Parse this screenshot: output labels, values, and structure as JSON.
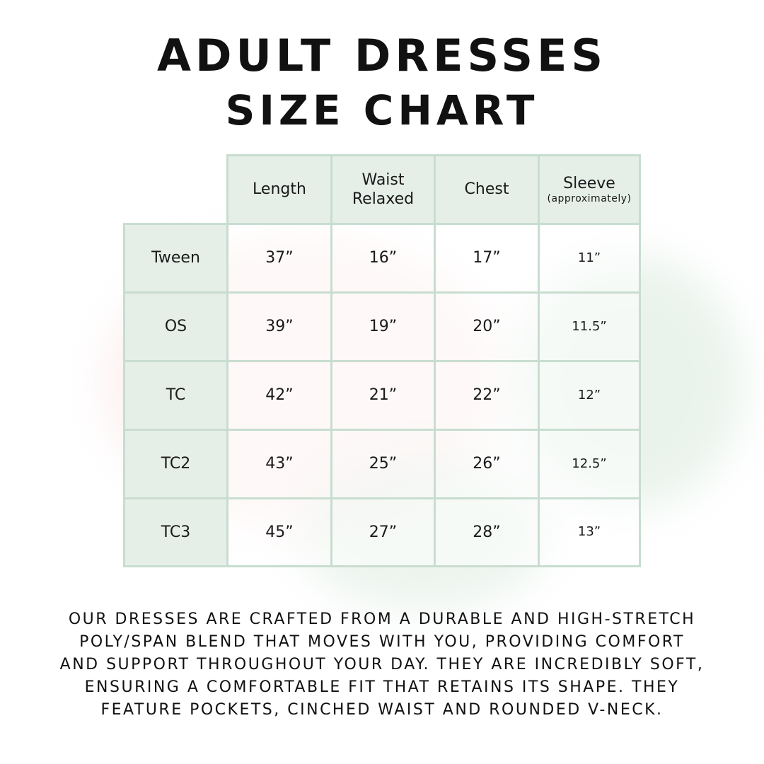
{
  "title_line1": "ADULT DRESSES",
  "title_line2": "SIZE CHART",
  "colors": {
    "header_bg": "#e5efe8",
    "border": "#c8ddd0"
  },
  "chart_data": {
    "type": "table",
    "columns": [
      {
        "label": "Length",
        "sub": ""
      },
      {
        "label": "Waist Relaxed",
        "sub": ""
      },
      {
        "label": "Chest",
        "sub": ""
      },
      {
        "label": "Sleeve",
        "sub": "(approximately)"
      }
    ],
    "rows": [
      {
        "size": "Tween",
        "values": [
          "37”",
          "16”",
          "17”",
          "11”"
        ]
      },
      {
        "size": "OS",
        "values": [
          "39”",
          "19”",
          "20”",
          "11.5”"
        ]
      },
      {
        "size": "TC",
        "values": [
          "42”",
          "21”",
          "22”",
          "12”"
        ]
      },
      {
        "size": "TC2",
        "values": [
          "43”",
          "25”",
          "26”",
          "12.5”"
        ]
      },
      {
        "size": "TC3",
        "values": [
          "45”",
          "27”",
          "28”",
          "13”"
        ]
      }
    ]
  },
  "description_lines": [
    "our dresses are crafted from a durable and high-stretch",
    "poly/span blend that moves with you, providing comfort",
    "and support throughout your day. they are incredibly soft,",
    "ensuring a comfortable fit that retains its shape. they",
    "feature pockets, cinched waist and rounded v-neck."
  ]
}
